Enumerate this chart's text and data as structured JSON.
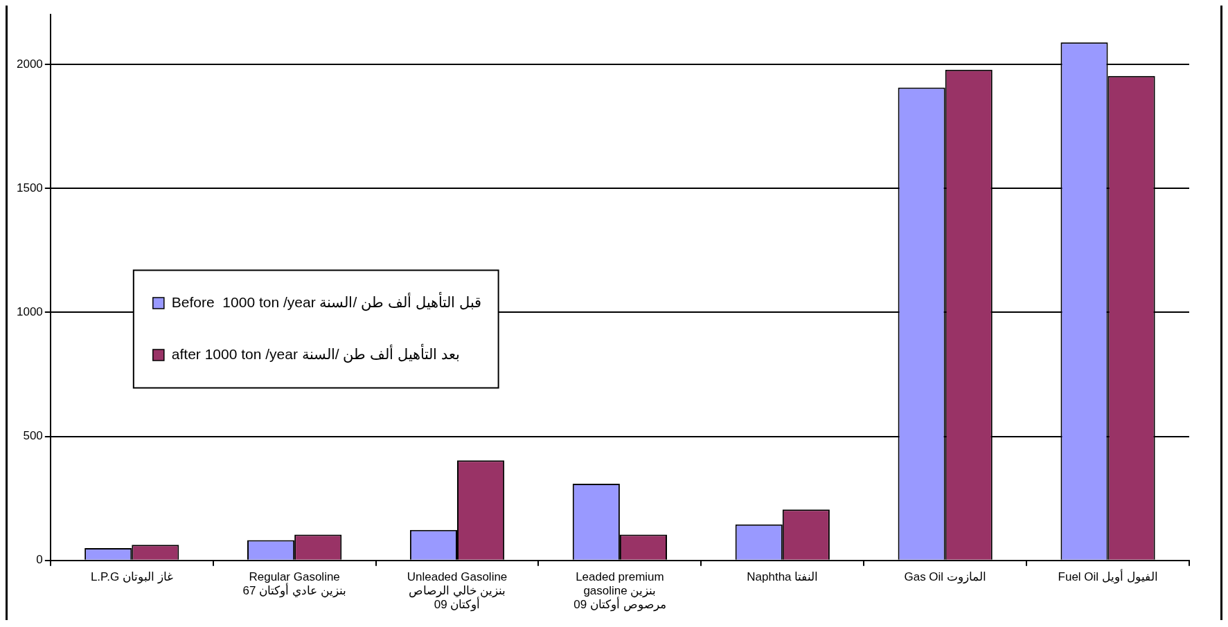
{
  "chart_data": {
    "type": "bar",
    "categories": [
      "L.P.G غاز البوتان",
      "Regular Gasoline\nبنزين عادي أوكتان 67",
      "Unleaded Gasoline\nبنزين خالي الرصاص\nأوكتان 09",
      "Leaded premium\ngasoline بنزين\nمرصوص أوكتان 09",
      "Naphtha النفتا",
      "Gas Oil المازوت",
      "Fuel Oil الفيول أويل"
    ],
    "series": [
      {
        "name": "Before  1000 ton /year قبل التأهيل ألف طن /السنة",
        "color": "#9999ff",
        "values": [
          50,
          82,
          123,
          309,
          145,
          1906,
          2088
        ]
      },
      {
        "name": "after 1000 ton /year بعد التأهيل ألف طن /السنة",
        "color": "#993366",
        "values": [
          63,
          104,
          403,
          104,
          205,
          1978,
          1953
        ]
      }
    ],
    "ylim": [
      0,
      2200
    ],
    "yticks": [
      0,
      500,
      1000,
      1500,
      2000
    ],
    "grid": "y",
    "legend": "left"
  }
}
